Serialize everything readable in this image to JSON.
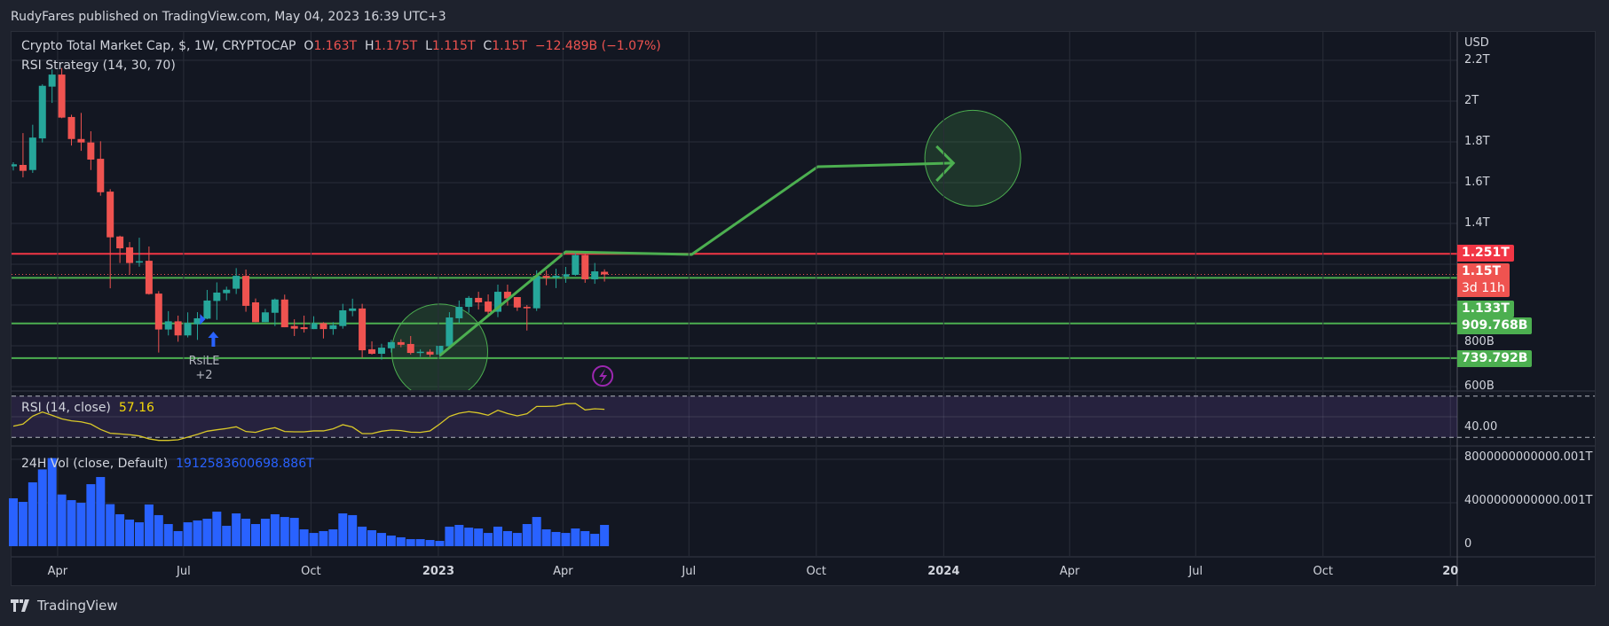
{
  "header": {
    "published": "RudyFares published on TradingView.com, May 04, 2023 16:39 UTC+3"
  },
  "legend": {
    "symbol": "Crypto Total Market Cap, $, 1W, CRYPTOCAP",
    "o_label": "O",
    "o": "1.163T",
    "h_label": "H",
    "h": "1.175T",
    "l_label": "L",
    "l": "1.115T",
    "c_label": "C",
    "c": "1.15T",
    "change": "−12.489B (−1.07%)",
    "strategy": "RSI Strategy (14, 30, 70)",
    "rsi_title": "RSI (14, close)",
    "rsi_value": "57.16",
    "vol_title": "24H Vol (close, Default)",
    "vol_value": "1912583600698.886T"
  },
  "price_axis": {
    "currency": "USD",
    "ticks": [
      {
        "v": 2.2,
        "label": "2.2T"
      },
      {
        "v": 2.0,
        "label": "2T"
      },
      {
        "v": 1.8,
        "label": "1.8T"
      },
      {
        "v": 1.6,
        "label": "1.6T"
      },
      {
        "v": 1.4,
        "label": "1.4T"
      },
      {
        "v": 0.8,
        "label": "800B"
      },
      {
        "v": 0.6,
        "label": "600B"
      }
    ],
    "grid": [
      2.2,
      2.0,
      1.8,
      1.6,
      1.4,
      1.2,
      1.0,
      0.8,
      0.6
    ],
    "tags": [
      {
        "label": "1.251T",
        "color": "#f23645",
        "v": 1.251
      },
      {
        "label": "1.15T",
        "sub": "3d 11h",
        "color": "#ef5350",
        "v": 1.15
      },
      {
        "label": "1.133T",
        "color": "#4caf50",
        "v": 1.133
      },
      {
        "label": "909.768B",
        "color": "#4caf50",
        "v": 0.909768
      },
      {
        "label": "739.792B",
        "color": "#4caf50",
        "v": 0.739792
      }
    ]
  },
  "rsi_axis": {
    "label": "40.00",
    "v": 40,
    "upper": 70,
    "lower": 30
  },
  "vol_axis": {
    "ticks": [
      {
        "v": 8,
        "label": "8000000000000.001T"
      },
      {
        "v": 4,
        "label": "4000000000000.001T"
      },
      {
        "v": 0,
        "label": "0"
      }
    ]
  },
  "time_axis": [
    {
      "date": "2022-04-01",
      "label": "Apr"
    },
    {
      "date": "2022-07-01",
      "label": "Jul"
    },
    {
      "date": "2022-10-01",
      "label": "Oct"
    },
    {
      "date": "2023-01-01",
      "label": "2023",
      "bold": true
    },
    {
      "date": "2023-04-01",
      "label": "Apr"
    },
    {
      "date": "2023-07-01",
      "label": "Jul"
    },
    {
      "date": "2023-10-01",
      "label": "Oct"
    },
    {
      "date": "2024-01-01",
      "label": "2024",
      "bold": true
    },
    {
      "date": "2024-04-01",
      "label": "Apr"
    },
    {
      "date": "2024-07-01",
      "label": "Jul"
    },
    {
      "date": "2024-10-01",
      "label": "Oct"
    },
    {
      "date": "2025-01-01",
      "label": "20",
      "bold": true
    }
  ],
  "colors": {
    "up": "#26a69a",
    "down": "#ef5350",
    "support": "#4caf50",
    "resistance": "#f23645",
    "rsi": "#d9c829",
    "volume": "#2962ff",
    "drawing": "#4caf50",
    "grid": "#2a2e39"
  },
  "chart_data": {
    "type": "candlestick",
    "interval": "1W",
    "start_date": "2022-02-28",
    "price_unit": "T USD",
    "ylim": [
      0.583,
      2.339
    ],
    "ohlc": [
      [
        1.68,
        1.7,
        1.66,
        1.69
      ],
      [
        1.687,
        1.843,
        1.626,
        1.658
      ],
      [
        1.662,
        1.884,
        1.648,
        1.821
      ],
      [
        1.817,
        2.082,
        1.797,
        2.075
      ],
      [
        2.071,
        2.155,
        1.991,
        2.13
      ],
      [
        2.13,
        2.162,
        1.916,
        1.919
      ],
      [
        1.922,
        1.933,
        1.782,
        1.814
      ],
      [
        1.814,
        1.942,
        1.756,
        1.797
      ],
      [
        1.797,
        1.852,
        1.662,
        1.713
      ],
      [
        1.717,
        1.803,
        1.536,
        1.553
      ],
      [
        1.556,
        1.568,
        1.082,
        1.332
      ],
      [
        1.336,
        1.34,
        1.206,
        1.278
      ],
      [
        1.283,
        1.309,
        1.151,
        1.206
      ],
      [
        1.208,
        1.33,
        1.188,
        1.215
      ],
      [
        1.217,
        1.287,
        1.051,
        1.054
      ],
      [
        1.056,
        1.068,
        0.767,
        0.88
      ],
      [
        0.88,
        0.97,
        0.851,
        0.92
      ],
      [
        0.92,
        0.948,
        0.82,
        0.851
      ],
      [
        0.851,
        0.964,
        0.841,
        0.912
      ],
      [
        0.906,
        0.965,
        0.829,
        0.935
      ],
      [
        0.933,
        1.074,
        0.93,
        1.022
      ],
      [
        1.02,
        1.111,
        0.927,
        1.061
      ],
      [
        1.058,
        1.09,
        1.023,
        1.075
      ],
      [
        1.08,
        1.181,
        1.054,
        1.143
      ],
      [
        1.143,
        1.174,
        0.967,
        0.996
      ],
      [
        1.013,
        1.032,
        0.916,
        0.916
      ],
      [
        0.916,
        0.981,
        0.916,
        0.964
      ],
      [
        0.962,
        1.032,
        0.897,
        1.027
      ],
      [
        1.027,
        1.051,
        0.891,
        0.891
      ],
      [
        0.897,
        0.93,
        0.848,
        0.884
      ],
      [
        0.891,
        0.948,
        0.865,
        0.882
      ],
      [
        0.882,
        0.945,
        0.882,
        0.911
      ],
      [
        0.911,
        0.916,
        0.836,
        0.882
      ],
      [
        0.882,
        0.916,
        0.854,
        0.901
      ],
      [
        0.897,
        1.006,
        0.884,
        0.974
      ],
      [
        0.971,
        1.031,
        0.945,
        0.983
      ],
      [
        0.983,
        1.006,
        0.742,
        0.778
      ],
      [
        0.783,
        0.822,
        0.757,
        0.761
      ],
      [
        0.761,
        0.81,
        0.732,
        0.791
      ],
      [
        0.788,
        0.829,
        0.767,
        0.818
      ],
      [
        0.818,
        0.832,
        0.793,
        0.805
      ],
      [
        0.809,
        0.848,
        0.757,
        0.765
      ],
      [
        0.767,
        0.783,
        0.746,
        0.771
      ],
      [
        0.771,
        0.783,
        0.746,
        0.757
      ],
      [
        0.757,
        0.8,
        0.746,
        0.8
      ],
      [
        0.797,
        0.965,
        0.794,
        0.939
      ],
      [
        0.935,
        1.022,
        0.913,
        0.991
      ],
      [
        0.991,
        1.044,
        0.962,
        1.035
      ],
      [
        1.035,
        1.065,
        0.978,
        1.013
      ],
      [
        1.017,
        1.052,
        0.955,
        0.967
      ],
      [
        0.967,
        1.1,
        0.941,
        1.065
      ],
      [
        1.065,
        1.1,
        0.997,
        1.032
      ],
      [
        1.039,
        1.039,
        0.971,
        0.988
      ],
      [
        0.991,
        1.0,
        0.875,
        0.984
      ],
      [
        0.984,
        1.17,
        0.971,
        1.143
      ],
      [
        1.143,
        1.17,
        1.097,
        1.133
      ],
      [
        1.135,
        1.178,
        1.083,
        1.143
      ],
      [
        1.139,
        1.187,
        1.109,
        1.151
      ],
      [
        1.148,
        1.256,
        1.143,
        1.245
      ],
      [
        1.245,
        1.256,
        1.109,
        1.126
      ],
      [
        1.126,
        1.206,
        1.104,
        1.165
      ],
      [
        1.163,
        1.175,
        1.115,
        1.15
      ]
    ],
    "rsi": [
      40.9,
      42.9,
      50.6,
      54.6,
      51.4,
      48.0,
      46.0,
      45.1,
      42.9,
      37.7,
      34.0,
      33.4,
      32.6,
      31.4,
      28.6,
      27.1,
      27.1,
      27.7,
      30.3,
      32.9,
      36.0,
      37.4,
      38.6,
      40.3,
      35.7,
      34.9,
      37.7,
      39.4,
      35.7,
      35.4,
      35.4,
      36.3,
      36.3,
      38.3,
      42.3,
      40.0,
      33.7,
      33.7,
      36.0,
      37.1,
      36.6,
      35.1,
      34.9,
      36.3,
      42.9,
      50.3,
      53.4,
      54.9,
      53.7,
      51.4,
      56.3,
      53.1,
      50.9,
      52.9,
      60.0,
      60.0,
      60.3,
      62.6,
      62.9,
      56.6,
      57.7,
      57.16
    ],
    "volume_T": [
      4.41,
      4.08,
      5.88,
      7.07,
      8.11,
      4.76,
      4.24,
      4.0,
      5.71,
      6.37,
      3.87,
      2.94,
      2.45,
      2.2,
      3.84,
      2.86,
      2.04,
      1.39,
      2.2,
      2.37,
      2.53,
      3.18,
      1.88,
      3.02,
      2.53,
      2.04,
      2.53,
      2.94,
      2.69,
      2.61,
      1.55,
      1.22,
      1.39,
      1.55,
      3.02,
      2.86,
      1.8,
      1.47,
      1.22,
      0.98,
      0.82,
      0.65,
      0.65,
      0.57,
      0.49,
      1.8,
      1.96,
      1.71,
      1.63,
      1.22,
      1.8,
      1.39,
      1.22,
      2.04,
      2.69,
      1.55,
      1.31,
      1.22,
      1.63,
      1.39,
      1.14,
      1.96
    ],
    "horizontal_lines": [
      {
        "v": 1.251,
        "color": "#f23645"
      },
      {
        "v": 1.133,
        "color": "#4caf50"
      },
      {
        "v": 0.909768,
        "color": "#4caf50"
      },
      {
        "v": 0.739792,
        "color": "#4caf50"
      }
    ],
    "current_price": 1.15,
    "drawing_path": [
      {
        "date": "2023-01-02",
        "v": 0.752
      },
      {
        "date": "2023-04-03",
        "v": 1.261
      },
      {
        "date": "2023-07-03",
        "v": 1.248
      },
      {
        "date": "2023-10-02",
        "v": 1.678
      },
      {
        "date": "2024-01-08",
        "v": 1.696
      }
    ],
    "circles": [
      {
        "date": "2023-01-02",
        "v": 0.77
      },
      {
        "date": "2024-01-22",
        "v": 1.72
      }
    ],
    "signal": {
      "label": "RsiLE",
      "count": "+2",
      "date": "2022-07-11"
    }
  },
  "footer": {
    "brand": "TradingView"
  }
}
